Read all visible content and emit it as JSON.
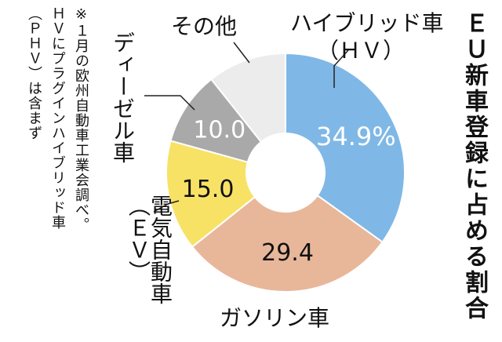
{
  "chart_data": {
    "type": "pie",
    "style": "donut",
    "title": "ＥＵ新車登録に占める割合",
    "notes": [
      "※１月の欧州自動車工業会調べ。",
      "ＨＶにプラグインハイブリッド車",
      "（ＰＨＶ）は含まず"
    ],
    "categories": [
      "ハイブリッド車（ＨＶ）",
      "ガソリン車",
      "電気自動車（ＥＶ）",
      "ディーゼル車",
      "その他"
    ],
    "values": [
      34.9,
      29.4,
      15.0,
      10.0,
      10.7
    ],
    "value_labels": [
      "34.9%",
      "29.4",
      "15.0",
      "10.0",
      ""
    ],
    "colors": [
      "#7fb8e6",
      "#e8b79a",
      "#f7e265",
      "#a9a9a9",
      "#ececec"
    ],
    "label_text_colors": [
      "#ffffff",
      "#111111",
      "#111111",
      "#ffffff",
      "#111111"
    ],
    "unit": "%"
  }
}
